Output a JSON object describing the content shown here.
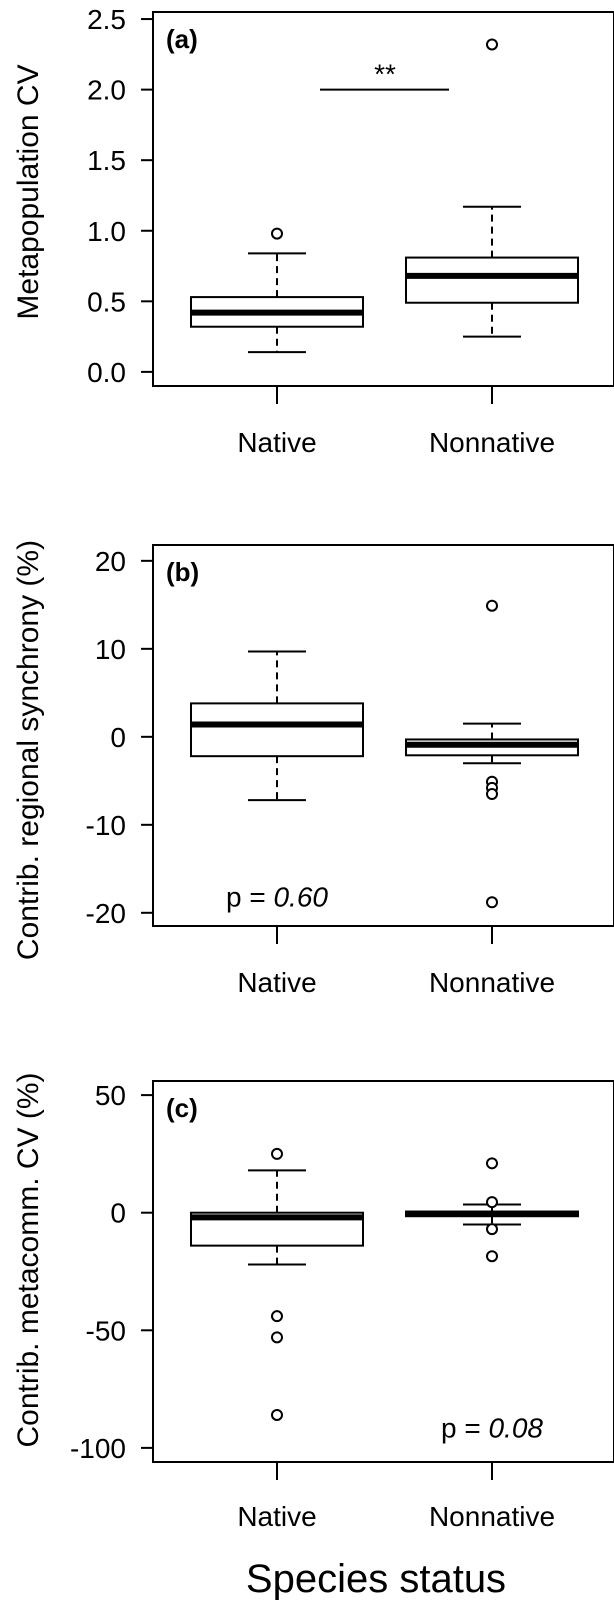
{
  "chart_data": [
    {
      "type": "box",
      "panel_label": "(a)",
      "ylabel": "Metapopulation CV",
      "ylim": [
        -0.1,
        2.55
      ],
      "yticks": [
        0.0,
        0.5,
        1.0,
        1.5,
        2.0,
        2.5
      ],
      "ytick_labels": [
        "0.0",
        "0.5",
        "1.0",
        "1.5",
        "2.0",
        "2.5"
      ],
      "categories": [
        "Native",
        "Nonnative"
      ],
      "boxes": [
        {
          "category": "Native",
          "whisker_low": 0.14,
          "q1": 0.32,
          "median": 0.42,
          "q3": 0.53,
          "whisker_high": 0.84,
          "outliers": [
            0.98
          ]
        },
        {
          "category": "Nonnative",
          "whisker_low": 0.25,
          "q1": 0.49,
          "median": 0.68,
          "q3": 0.81,
          "whisker_high": 1.17,
          "outliers": [
            2.32
          ]
        }
      ],
      "annotation": {
        "text": "**",
        "bar_y": 2.0
      },
      "p_text": null
    },
    {
      "type": "box",
      "panel_label": "(b)",
      "ylabel": "Contrib. regional synchrony (%)",
      "ylim": [
        -21.5,
        21.8
      ],
      "yticks": [
        -20,
        -10,
        0,
        10,
        20
      ],
      "ytick_labels": [
        "-20",
        "-10",
        "0",
        "10",
        "20"
      ],
      "categories": [
        "Native",
        "Nonnative"
      ],
      "boxes": [
        {
          "category": "Native",
          "whisker_low": -7.2,
          "q1": -2.2,
          "median": 1.4,
          "q3": 3.8,
          "whisker_high": 9.7,
          "outliers": []
        },
        {
          "category": "Nonnative",
          "whisker_low": -3.0,
          "q1": -2.1,
          "median": -0.9,
          "q3": -0.3,
          "whisker_high": 1.5,
          "outliers": [
            14.9,
            -5.1,
            -5.8,
            -6.5,
            -18.8
          ]
        }
      ],
      "annotation": null,
      "p_text": {
        "prefix": "p = ",
        "value": "0.60",
        "category_index": 0,
        "y": -19.3
      }
    },
    {
      "type": "box",
      "panel_label": "(c)",
      "ylabel": "Contrib. metacomm. CV (%)",
      "ylim": [
        -106,
        56
      ],
      "yticks": [
        -100,
        -50,
        0,
        50
      ],
      "ytick_labels": [
        "-100",
        "-50",
        "0",
        "50"
      ],
      "categories": [
        "Native",
        "Nonnative"
      ],
      "boxes": [
        {
          "category": "Native",
          "whisker_low": -22,
          "q1": -14,
          "median": -2,
          "q3": 0,
          "whisker_high": 18,
          "outliers": [
            25,
            -44,
            -53,
            -86
          ]
        },
        {
          "category": "Nonnative",
          "whisker_low": -5,
          "q1": -1.5,
          "median": -0.5,
          "q3": 0.5,
          "whisker_high": 3.5,
          "outliers": [
            21,
            4.5,
            -7,
            -18.5
          ]
        }
      ],
      "annotation": null,
      "p_text": {
        "prefix": "p = ",
        "value": "0.08",
        "category_index": 1,
        "y": -95.5
      }
    }
  ],
  "xlabel": "Species status"
}
